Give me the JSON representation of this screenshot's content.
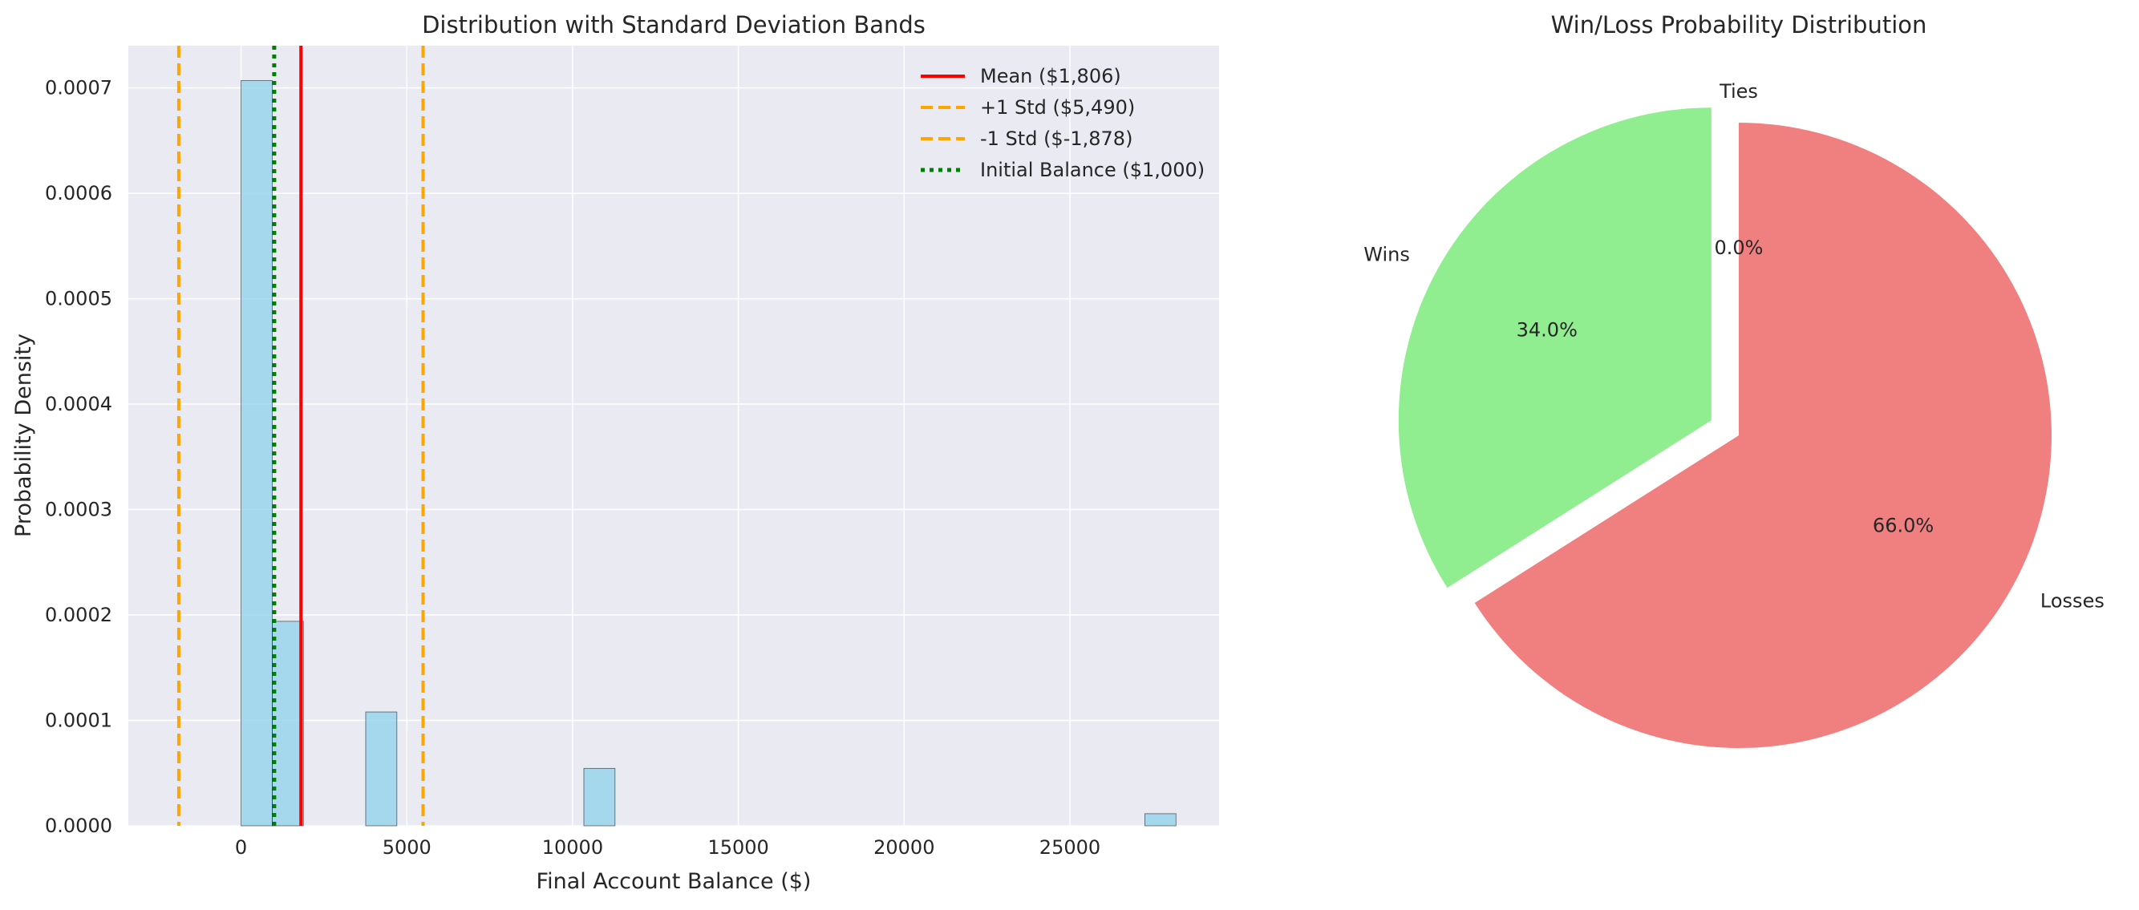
{
  "chart_data": [
    {
      "type": "bar",
      "title": "Distribution with Standard Deviation Bands",
      "xlabel": "Final Account Balance ($)",
      "ylabel": "Probability Density",
      "xlim": [
        -3400,
        29500
      ],
      "ylim": [
        0,
        0.00074
      ],
      "grid": true,
      "legend_position": "top-right",
      "x_ticks": [
        0,
        5000,
        10000,
        15000,
        20000,
        25000
      ],
      "x_tick_labels": [
        "0",
        "5000",
        "10000",
        "15000",
        "20000",
        "25000"
      ],
      "y_ticks": [
        0,
        0.0001,
        0.0002,
        0.0003,
        0.0004,
        0.0005,
        0.0006,
        0.0007
      ],
      "y_tick_labels": [
        "0.0000",
        "0.0001",
        "0.0002",
        "0.0003",
        "0.0004",
        "0.0005",
        "0.0006",
        "0.0007"
      ],
      "bin_width": 940,
      "bars": [
        {
          "x0": 0,
          "x1": 940,
          "density": 0.000707
        },
        {
          "x0": 940,
          "x1": 1880,
          "density": 0.000194
        },
        {
          "x0": 3760,
          "x1": 4700,
          "density": 0.000108
        },
        {
          "x0": 10340,
          "x1": 11280,
          "density": 5.45e-05
        },
        {
          "x0": 27260,
          "x1": 28200,
          "density": 1.15e-05
        }
      ],
      "colors": {
        "bar": "#87ceeb",
        "bar_edge": "#000000",
        "mean": "#ff0000",
        "std": "#ffa500",
        "initial": "#008000"
      },
      "reference_lines": [
        {
          "label": "Mean ($1,806)",
          "x": 1806,
          "style": "solid",
          "color": "#ff0000"
        },
        {
          "label": "+1 Std ($5,490)",
          "x": 5490,
          "style": "dashed",
          "color": "#ffa500"
        },
        {
          "label": "-1 Std ($-1,878)",
          "x": -1878,
          "style": "dashed",
          "color": "#ffa500"
        },
        {
          "label": "Initial Balance ($1,000)",
          "x": 1000,
          "style": "dotted",
          "color": "#008000"
        }
      ]
    },
    {
      "type": "pie",
      "title": "Win/Loss Probability Distribution",
      "start_angle": 90,
      "slices": [
        {
          "label": "Wins",
          "value": 34.0,
          "pct_label": "34.0%",
          "color": "#90ee90",
          "explode": 0.1
        },
        {
          "label": "Losses",
          "value": 66.0,
          "pct_label": "66.0%",
          "color": "#f08080",
          "explode": 0
        },
        {
          "label": "Ties",
          "value": 0.0,
          "pct_label": "0.0%",
          "color": "#ffb6c1",
          "explode": 0
        }
      ]
    }
  ]
}
